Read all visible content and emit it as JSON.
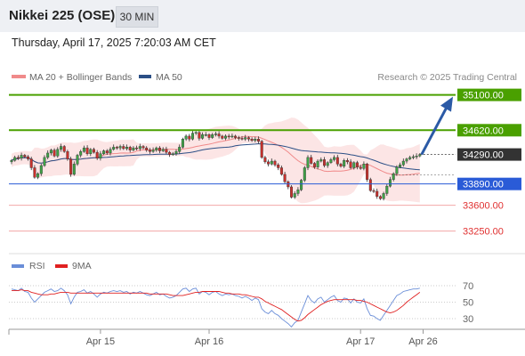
{
  "header": {
    "title": "Nikkei 225 (OSE)",
    "timeframe": "30 MIN"
  },
  "datetime": "Thursday, April 17, 2025 7:20:03 AM CET",
  "colors": {
    "bollinger": "#f08a8a",
    "ma50": "#2b4f86",
    "resistance": "#4aa000",
    "support": "#2a5bd7",
    "target_red": "#f3a7a7",
    "arrow": "#2b5aa6",
    "rsi": "#6a8ed8",
    "rsi_ma": "#e02020",
    "current": "#333333"
  },
  "chart_data": [
    {
      "type": "candlestick",
      "legend": [
        {
          "name": "MA 20 + Bollinger Bands",
          "color": "#f08a8a"
        },
        {
          "name": "MA 50",
          "color": "#2b4f86"
        }
      ],
      "credit": "Research © 2025 Trading Central",
      "ylim": [
        33100,
        35180
      ],
      "current_price": 34290,
      "arrow_target": 35100,
      "levels": [
        {
          "label": "35100.00",
          "value": 35100,
          "kind": "resistance"
        },
        {
          "label": "34620.00",
          "value": 34620,
          "kind": "resistance"
        },
        {
          "label": "34290.00",
          "value": 34290,
          "kind": "current"
        },
        {
          "label": "33890.00",
          "value": 33890,
          "kind": "support"
        },
        {
          "label": "33600.00",
          "value": 33600,
          "kind": "target"
        },
        {
          "label": "33250.00",
          "value": 33250,
          "kind": "target"
        }
      ],
      "closes": [
        34210,
        34250,
        34240,
        34280,
        34260,
        34230,
        34110,
        33980,
        34030,
        34140,
        34250,
        34310,
        34350,
        34270,
        34360,
        34400,
        34330,
        34230,
        34020,
        34160,
        34280,
        34330,
        34380,
        34300,
        34360,
        34320,
        34240,
        34300,
        34340,
        34310,
        34360,
        34390,
        34380,
        34400,
        34370,
        34390,
        34350,
        34380,
        34370,
        34400,
        34380,
        34350,
        34330,
        34350,
        34380,
        34340,
        34360,
        34320,
        34290,
        34300,
        34330,
        34390,
        34500,
        34540,
        34500,
        34580,
        34590,
        34510,
        34560,
        34560,
        34520,
        34560,
        34570,
        34540,
        34510,
        34540,
        34530,
        34540,
        34520,
        34510,
        34500,
        34520,
        34500,
        34480,
        34500,
        34470,
        34250,
        34190,
        34160,
        34200,
        34150,
        34110,
        34020,
        33920,
        33850,
        33710,
        33760,
        33810,
        33940,
        34110,
        34250,
        34170,
        34120,
        34200,
        34220,
        34140,
        34180,
        34220,
        34250,
        34160,
        34130,
        34210,
        34190,
        34110,
        34180,
        34120,
        34100,
        34160,
        33950,
        33800,
        33790,
        33720,
        33690,
        33760,
        33860,
        33950,
        34030,
        34120,
        34150,
        34200,
        34230,
        34250,
        34260,
        34270,
        34290
      ],
      "x_ticks": [
        {
          "label": "Apr 15",
          "index": 27
        },
        {
          "label": "Apr 16",
          "index": 60
        },
        {
          "label": "Apr 17",
          "index": 106
        },
        {
          "label": "Apr 26",
          "index": 125
        }
      ]
    },
    {
      "type": "line",
      "legend": [
        {
          "name": "RSI",
          "color": "#6a8ed8"
        },
        {
          "name": "9MA",
          "color": "#e02020"
        }
      ],
      "ylim": [
        10,
        90
      ],
      "y_ticks": [
        {
          "label": "70",
          "value": 70
        },
        {
          "label": "50",
          "value": 50
        },
        {
          "label": "30",
          "value": 30
        }
      ],
      "rsi": [
        66,
        65,
        64,
        67,
        63,
        62,
        55,
        50,
        54,
        58,
        62,
        64,
        66,
        63,
        64,
        67,
        64,
        59,
        48,
        56,
        62,
        63,
        65,
        61,
        63,
        60,
        56,
        60,
        62,
        61,
        63,
        64,
        63,
        64,
        62,
        63,
        60,
        62,
        61,
        63,
        61,
        59,
        58,
        60,
        62,
        59,
        60,
        57,
        55,
        56,
        58,
        62,
        66,
        67,
        63,
        66,
        67,
        60,
        63,
        62,
        59,
        62,
        63,
        60,
        58,
        60,
        59,
        60,
        58,
        57,
        55,
        57,
        55,
        52,
        55,
        53,
        42,
        38,
        36,
        40,
        36,
        34,
        30,
        27,
        24,
        20,
        25,
        28,
        38,
        48,
        58,
        52,
        49,
        54,
        56,
        50,
        53,
        56,
        58,
        52,
        50,
        55,
        54,
        49,
        54,
        50,
        49,
        54,
        42,
        34,
        33,
        30,
        28,
        34,
        40,
        46,
        52,
        58,
        60,
        63,
        64,
        65,
        66,
        66,
        67
      ],
      "rsi_ma": [
        64,
        64,
        64,
        65,
        64,
        64,
        62,
        61,
        60,
        59,
        59,
        59,
        60,
        60,
        61,
        62,
        62,
        62,
        61,
        61,
        61,
        61,
        61,
        61,
        61,
        61,
        61,
        61,
        61,
        61,
        61,
        61,
        61,
        61,
        61,
        61,
        61,
        61,
        61,
        61,
        61,
        61,
        60,
        60,
        60,
        60,
        60,
        60,
        59,
        58,
        58,
        58,
        58,
        59,
        60,
        61,
        62,
        62,
        63,
        63,
        63,
        63,
        63,
        63,
        62,
        61,
        61,
        60,
        60,
        60,
        59,
        59,
        58,
        57,
        56,
        56,
        54,
        51,
        49,
        47,
        45,
        43,
        41,
        38,
        35,
        32,
        29,
        27,
        28,
        31,
        35,
        38,
        41,
        44,
        47,
        49,
        51,
        52,
        53,
        53,
        53,
        53,
        53,
        53,
        53,
        52,
        52,
        51,
        50,
        48,
        46,
        44,
        42,
        40,
        38,
        37,
        38,
        40,
        43,
        46,
        50,
        53,
        56,
        59,
        62
      ]
    }
  ]
}
